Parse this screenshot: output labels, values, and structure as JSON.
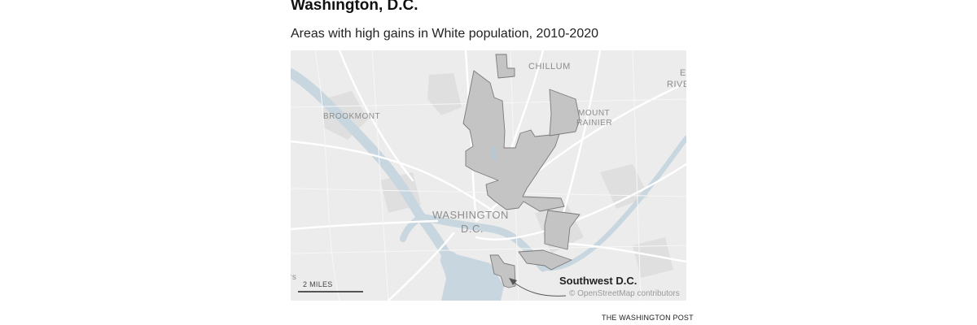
{
  "title": "Washington, D.C.",
  "subtitle": "Areas with high gains in White population, 2010-2020",
  "map": {
    "place_labels": {
      "chillum": "CHILLUM",
      "brookmont": "BROOKMONT",
      "mount": "MOUNT",
      "rainier": "RAINIER",
      "east_line1": "E",
      "east_line2": "RIVE",
      "washington": "WASHINGTON",
      "dc": "D.C.",
      "edge_fragment": "rs"
    },
    "highlight_label": "Southwest D.C.",
    "scale_label": "2 MILES",
    "attribution": "© OpenStreetMap contributors",
    "colors": {
      "base": "#ececec",
      "water": "#c8d6df",
      "park": "#dcdcdc",
      "road": "#ffffff",
      "highlight_fill": "#c4c4c4",
      "highlight_stroke": "#7a7a7a"
    }
  },
  "credit": "THE WASHINGTON POST"
}
